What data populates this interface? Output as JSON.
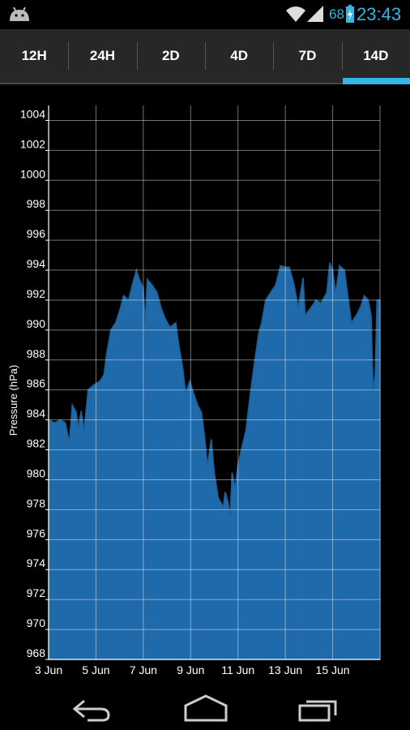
{
  "status_bar": {
    "battery_percent": "68",
    "time": "23:43",
    "accent_color": "#33b5e5"
  },
  "tabs": [
    {
      "label": "12H",
      "selected": false
    },
    {
      "label": "24H",
      "selected": false
    },
    {
      "label": "2D",
      "selected": false
    },
    {
      "label": "4D",
      "selected": false
    },
    {
      "label": "7D",
      "selected": false
    },
    {
      "label": "14D",
      "selected": true
    }
  ],
  "chart_data": {
    "type": "area",
    "ylabel": "Pressure (hPa)",
    "xlabel": "",
    "ylim": [
      968,
      1005
    ],
    "yticks": [
      968,
      970,
      972,
      974,
      976,
      978,
      980,
      982,
      984,
      986,
      988,
      990,
      992,
      994,
      996,
      998,
      1000,
      1002,
      1004
    ],
    "xlim": [
      "2013-06-03",
      "2013-06-17T00:00"
    ],
    "xticks": [
      "3 Jun",
      "5 Jun",
      "7 Jun",
      "9 Jun",
      "11 Jun",
      "13 Jun",
      "15 Jun"
    ],
    "x_date_ticks": [
      "2013-06-03",
      "2013-06-05",
      "2013-06-07",
      "2013-06-09",
      "2013-06-11",
      "2013-06-13",
      "2013-06-15"
    ],
    "grid": true,
    "fill_color": "#1e6aab",
    "line_color": "#1f5e94",
    "series": [
      {
        "points": [
          [
            "2013-06-03T00:00",
            984.0
          ],
          [
            "2013-06-03T06:00",
            983.8
          ],
          [
            "2013-06-03T12:00",
            984.0
          ],
          [
            "2013-06-03T17:00",
            983.8
          ],
          [
            "2013-06-03T21:00",
            982.5
          ],
          [
            "2013-06-04T00:00",
            985.0
          ],
          [
            "2013-06-04T04:00",
            984.5
          ],
          [
            "2013-06-04T06:00",
            983.5
          ],
          [
            "2013-06-04T09:00",
            984.6
          ],
          [
            "2013-06-04T12:00",
            983.3
          ],
          [
            "2013-06-04T16:00",
            986.0
          ],
          [
            "2013-06-04T21:00",
            986.3
          ],
          [
            "2013-06-05T04:00",
            986.6
          ],
          [
            "2013-06-05T08:00",
            987.0
          ],
          [
            "2013-06-05T11:00",
            988.5
          ],
          [
            "2013-06-05T15:00",
            990.0
          ],
          [
            "2013-06-05T20:00",
            990.5
          ],
          [
            "2013-06-06T00:00",
            991.3
          ],
          [
            "2013-06-06T04:00",
            992.3
          ],
          [
            "2013-06-06T09:00",
            992.0
          ],
          [
            "2013-06-06T12:00",
            992.8
          ],
          [
            "2013-06-06T14:00",
            993.3
          ],
          [
            "2013-06-06T17:00",
            994.0
          ],
          [
            "2013-06-06T20:00",
            993.4
          ],
          [
            "2013-06-07T00:00",
            992.8
          ],
          [
            "2013-06-07T02:00",
            990.5
          ],
          [
            "2013-06-07T04:00",
            993.4
          ],
          [
            "2013-06-07T09:00",
            993.0
          ],
          [
            "2013-06-07T14:00",
            992.5
          ],
          [
            "2013-06-07T18:00",
            991.5
          ],
          [
            "2013-06-07T22:00",
            990.8
          ],
          [
            "2013-06-08T03:00",
            990.2
          ],
          [
            "2013-06-08T09:00",
            990.5
          ],
          [
            "2013-06-08T12:00",
            989.0
          ],
          [
            "2013-06-08T16:00",
            987.5
          ],
          [
            "2013-06-08T19:00",
            985.8
          ],
          [
            "2013-06-08T23:00",
            986.6
          ],
          [
            "2013-06-09T03:00",
            985.8
          ],
          [
            "2013-06-09T07:00",
            985.0
          ],
          [
            "2013-06-09T11:00",
            984.5
          ],
          [
            "2013-06-09T14:00",
            983.0
          ],
          [
            "2013-06-09T17:00",
            981.0
          ],
          [
            "2013-06-09T21:00",
            982.7
          ],
          [
            "2013-06-10T00:00",
            980.5
          ],
          [
            "2013-06-10T04:00",
            978.8
          ],
          [
            "2013-06-10T09:00",
            978.2
          ],
          [
            "2013-06-10T11:00",
            979.2
          ],
          [
            "2013-06-10T14:00",
            978.5
          ],
          [
            "2013-06-10T16:00",
            977.6
          ],
          [
            "2013-06-10T18:00",
            980.5
          ],
          [
            "2013-06-10T21:00",
            979.5
          ],
          [
            "2013-06-11T00:00",
            981.0
          ],
          [
            "2013-06-11T04:00",
            982.2
          ],
          [
            "2013-06-11T08:00",
            983.3
          ],
          [
            "2013-06-11T12:00",
            985.5
          ],
          [
            "2013-06-11T17:00",
            988.0
          ],
          [
            "2013-06-11T21:00",
            989.8
          ],
          [
            "2013-06-12T00:00",
            990.5
          ],
          [
            "2013-06-12T04:00",
            992.0
          ],
          [
            "2013-06-12T09:00",
            992.5
          ],
          [
            "2013-06-12T14:00",
            993.0
          ],
          [
            "2013-06-12T19:00",
            994.3
          ],
          [
            "2013-06-13T00:00",
            994.2
          ],
          [
            "2013-06-13T04:00",
            994.2
          ],
          [
            "2013-06-13T09:00",
            993.0
          ],
          [
            "2013-06-13T13:00",
            991.5
          ],
          [
            "2013-06-13T18:00",
            993.5
          ],
          [
            "2013-06-13T20:00",
            991.0
          ],
          [
            "2013-06-14T01:00",
            991.4
          ],
          [
            "2013-06-14T07:00",
            992.0
          ],
          [
            "2013-06-14T12:00",
            991.8
          ],
          [
            "2013-06-14T18:00",
            992.5
          ],
          [
            "2013-06-14T21:00",
            994.5
          ],
          [
            "2013-06-15T00:00",
            994.0
          ],
          [
            "2013-06-15T03:00",
            992.5
          ],
          [
            "2013-06-15T07:00",
            994.3
          ],
          [
            "2013-06-15T12:00",
            994.0
          ],
          [
            "2013-06-15T15:00",
            992.5
          ],
          [
            "2013-06-15T19:00",
            990.5
          ],
          [
            "2013-06-16T00:00",
            991.0
          ],
          [
            "2013-06-16T04:00",
            991.5
          ],
          [
            "2013-06-16T08:00",
            992.3
          ],
          [
            "2013-06-16T12:00",
            992.0
          ],
          [
            "2013-06-16T15:00",
            991.0
          ],
          [
            "2013-06-16T17:00",
            986.0
          ],
          [
            "2013-06-16T19:00",
            987.0
          ],
          [
            "2013-06-16T21:00",
            992.0
          ]
        ]
      }
    ]
  },
  "nav_bar": {
    "buttons": [
      "back-icon",
      "home-icon",
      "recent-apps-icon"
    ]
  }
}
